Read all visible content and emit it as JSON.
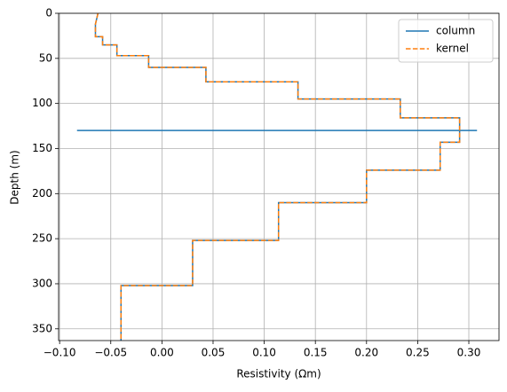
{
  "chart_data": {
    "type": "line",
    "xlabel": "Resistivity (Ωm)",
    "ylabel": "Depth (m)",
    "xlim": [
      -0.101,
      0.3295
    ],
    "ylim": [
      0,
      363
    ],
    "invert_y": true,
    "grid": true,
    "legend": "upper right",
    "xticks": [
      {
        "value": -0.1,
        "label": "−0.10"
      },
      {
        "value": -0.05,
        "label": "−0.05"
      },
      {
        "value": 0,
        "label": "0.00"
      },
      {
        "value": 0.05,
        "label": "0.05"
      },
      {
        "value": 0.1,
        "label": "0.10"
      },
      {
        "value": 0.15,
        "label": "0.15"
      },
      {
        "value": 0.2,
        "label": "0.20"
      },
      {
        "value": 0.25,
        "label": "0.25"
      },
      {
        "value": 0.3,
        "label": "0.30"
      }
    ],
    "yticks": [
      0,
      50,
      100,
      150,
      200,
      250,
      300,
      350
    ],
    "series": [
      {
        "name": "column",
        "color": "#1f77b4",
        "dash": false,
        "x": [
          -0.083,
          0.308,
          null,
          -0.0625,
          -0.065,
          -0.065,
          -0.058,
          -0.058,
          -0.044,
          -0.044,
          -0.013,
          -0.013,
          0.043,
          0.043,
          0.133,
          0.133,
          0.233,
          0.233,
          0.291,
          0.291,
          0.272,
          0.272,
          0.2,
          0.2,
          0.114,
          0.114,
          0.03,
          0.03,
          -0.04,
          -0.04
        ],
        "y": [
          130,
          130,
          null,
          0,
          12,
          26,
          26,
          35,
          35,
          47,
          47,
          60,
          60,
          76,
          76,
          95,
          95,
          116,
          116,
          143,
          143,
          174,
          174,
          210,
          210,
          252,
          252,
          302,
          302,
          363
        ]
      },
      {
        "name": "kernel",
        "color": "#ff7f0e",
        "dash": true,
        "x": [
          -0.0625,
          -0.065,
          -0.065,
          -0.058,
          -0.058,
          -0.044,
          -0.044,
          -0.013,
          -0.013,
          0.043,
          0.043,
          0.133,
          0.133,
          0.233,
          0.233,
          0.291,
          0.291,
          0.272,
          0.272,
          0.2,
          0.2,
          0.114,
          0.114,
          0.03,
          0.03,
          -0.04,
          -0.04
        ],
        "y": [
          0,
          12,
          26,
          26,
          35,
          35,
          47,
          47,
          60,
          60,
          76,
          76,
          95,
          95,
          116,
          116,
          143,
          143,
          174,
          174,
          210,
          210,
          252,
          252,
          302,
          302,
          363
        ]
      }
    ]
  }
}
